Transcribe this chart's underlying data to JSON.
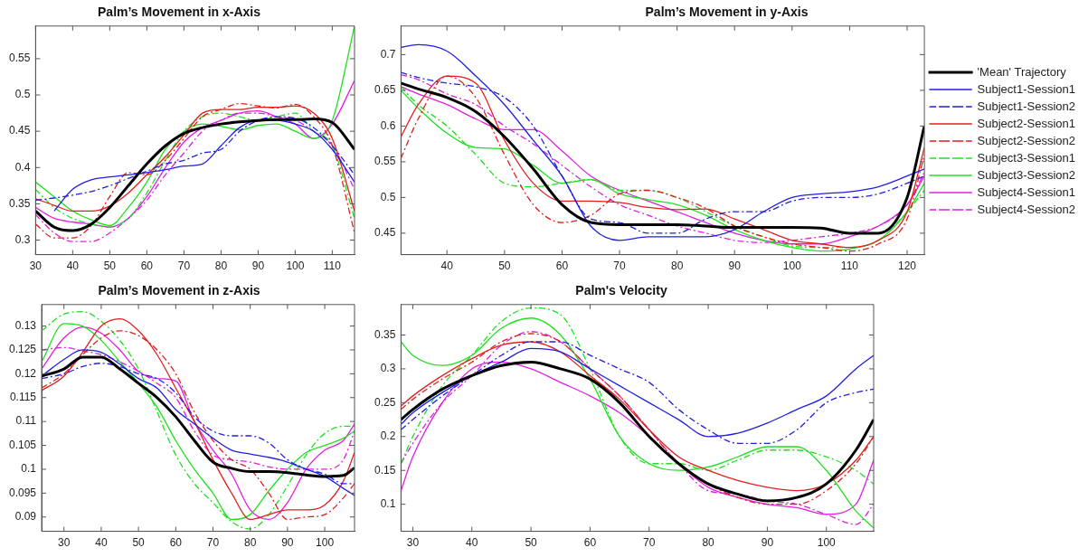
{
  "chart_data": [
    {
      "type": "line",
      "title": "Palm’s Movement in x-Axis",
      "x": [
        30,
        35,
        40,
        45,
        50,
        55,
        60,
        65,
        70,
        75,
        80,
        85,
        90,
        95,
        100,
        105,
        110,
        116
      ],
      "xlim": [
        30,
        116
      ],
      "xticks": [
        30,
        40,
        50,
        60,
        70,
        80,
        90,
        100,
        110
      ],
      "ylim": [
        0.28,
        0.595
      ],
      "yticks": [
        0.3,
        0.35,
        0.4,
        0.45,
        0.5,
        0.55
      ],
      "marker": "none",
      "legend": false,
      "series": [
        {
          "color": "#000000",
          "values": [
            0.34,
            0.318,
            0.313,
            0.322,
            0.345,
            0.375,
            0.405,
            0.43,
            0.447,
            0.455,
            0.46,
            0.463,
            0.465,
            0.466,
            0.466,
            0.467,
            0.462,
            0.425
          ]
        },
        {
          "color": "#2020e0",
          "values": [
            null,
            0.34,
            0.37,
            0.383,
            0.387,
            0.39,
            0.393,
            0.397,
            0.402,
            0.405,
            0.43,
            0.455,
            0.465,
            0.465,
            0.46,
            0.45,
            0.425,
            0.38
          ]
        },
        {
          "color": "#2020e0",
          "line_style": "dashed",
          "values": [
            0.355,
            0.358,
            0.362,
            0.367,
            0.375,
            0.385,
            0.395,
            0.405,
            0.41,
            0.42,
            0.425,
            0.45,
            0.465,
            0.47,
            0.468,
            0.455,
            0.43,
            0.39
          ]
        },
        {
          "color": "#e02020",
          "values": [
            0.357,
            0.348,
            0.34,
            0.34,
            0.347,
            0.365,
            0.39,
            0.415,
            0.445,
            0.475,
            0.48,
            0.48,
            0.483,
            0.483,
            0.485,
            0.475,
            0.44,
            0.34
          ]
        },
        {
          "color": "#e02020",
          "line_style": "dashed",
          "values": [
            0.322,
            0.303,
            0.303,
            0.32,
            0.36,
            0.393,
            0.39,
            0.41,
            0.44,
            0.47,
            0.48,
            0.488,
            0.485,
            0.482,
            0.487,
            0.47,
            0.43,
            0.31
          ]
        },
        {
          "color": "#20e020",
          "line_style": "dashed",
          "values": [
            0.37,
            0.345,
            0.33,
            0.322,
            0.318,
            0.33,
            0.365,
            0.41,
            0.45,
            0.47,
            0.475,
            0.47,
            0.465,
            0.47,
            0.475,
            0.45,
            0.43,
            0.33
          ]
        },
        {
          "color": "#20e020",
          "values": [
            0.38,
            0.36,
            0.34,
            0.328,
            0.32,
            0.345,
            0.38,
            0.425,
            0.45,
            0.46,
            0.457,
            0.452,
            0.458,
            0.46,
            0.45,
            0.44,
            0.465,
            0.595
          ]
        },
        {
          "color": "#e020e0",
          "values": [
            0.345,
            0.33,
            0.325,
            0.322,
            0.318,
            0.33,
            0.36,
            0.4,
            0.435,
            0.455,
            0.465,
            0.475,
            0.478,
            0.47,
            0.46,
            0.44,
            0.46,
            0.52
          ]
        },
        {
          "color": "#e020e0",
          "line_style": "dashed",
          "values": [
            0.335,
            0.31,
            0.298,
            0.298,
            0.31,
            0.33,
            0.355,
            0.39,
            0.42,
            0.45,
            0.465,
            0.475,
            0.475,
            0.47,
            0.465,
            0.45,
            0.43,
            0.37
          ]
        }
      ]
    },
    {
      "type": "line",
      "title": "Palm’s Movement in y-Axis",
      "x": [
        32,
        35,
        40,
        45,
        50,
        55,
        60,
        65,
        70,
        75,
        80,
        85,
        90,
        95,
        100,
        105,
        110,
        115,
        120,
        123
      ],
      "xlim": [
        32,
        123
      ],
      "xticks": [
        40,
        50,
        60,
        70,
        80,
        90,
        100,
        110,
        120
      ],
      "ylim": [
        0.42,
        0.74
      ],
      "yticks": [
        0.45,
        0.5,
        0.55,
        0.6,
        0.65,
        0.7
      ],
      "marker": "none",
      "legend": "right",
      "series": [
        {
          "name": "'Mean' Trajectory",
          "color": "#000000",
          "values": [
            0.66,
            0.652,
            0.64,
            0.62,
            0.585,
            0.54,
            0.49,
            0.465,
            0.462,
            0.462,
            0.462,
            0.46,
            0.458,
            0.458,
            0.458,
            0.457,
            0.45,
            0.45,
            0.5,
            0.6
          ]
        },
        {
          "name": "Subject1-Session1",
          "color": "#2020e0",
          "values": [
            0.71,
            0.714,
            0.705,
            0.67,
            0.63,
            0.58,
            0.53,
            0.46,
            0.44,
            0.445,
            0.445,
            0.445,
            0.455,
            0.48,
            0.5,
            0.505,
            0.508,
            0.515,
            0.53,
            0.54
          ]
        },
        {
          "name": "Subject1-Session2",
          "color": "#2020e0",
          "line_style": "dashed",
          "values": [
            0.675,
            0.668,
            0.66,
            0.655,
            0.64,
            0.6,
            0.53,
            0.47,
            0.465,
            0.45,
            0.45,
            0.47,
            0.48,
            0.48,
            0.495,
            0.5,
            0.5,
            0.505,
            0.52,
            0.53
          ]
        },
        {
          "name": "Subject2-Session1",
          "color": "#e02020",
          "values": [
            0.585,
            0.63,
            0.67,
            0.66,
            0.58,
            0.52,
            0.495,
            0.495,
            0.493,
            0.486,
            0.483,
            0.484,
            0.47,
            0.455,
            0.44,
            0.435,
            0.43,
            0.44,
            0.48,
            0.57
          ]
        },
        {
          "name": "Subject2-Session2",
          "color": "#e02020",
          "line_style": "dashed",
          "values": [
            0.555,
            0.61,
            0.67,
            0.64,
            0.56,
            0.49,
            0.465,
            0.475,
            0.505,
            0.51,
            0.5,
            0.485,
            0.46,
            0.445,
            0.435,
            0.43,
            0.425,
            0.435,
            0.47,
            0.56
          ]
        },
        {
          "name": "Subject3-Session1",
          "color": "#20e020",
          "line_style": "dashed",
          "values": [
            0.655,
            0.63,
            0.6,
            0.56,
            0.52,
            0.515,
            0.52,
            0.525,
            0.51,
            0.51,
            0.5,
            0.48,
            0.46,
            0.445,
            0.432,
            0.43,
            0.43,
            0.44,
            0.48,
            0.51
          ]
        },
        {
          "name": "Subject3-Session2",
          "color": "#20e020",
          "values": [
            0.65,
            0.625,
            0.59,
            0.57,
            0.568,
            0.545,
            0.52,
            0.525,
            0.505,
            0.497,
            0.49,
            0.475,
            0.455,
            0.44,
            0.43,
            0.425,
            0.428,
            0.44,
            0.48,
            0.52
          ]
        },
        {
          "name": "Subject4-Session1",
          "color": "#e020e0",
          "values": [
            0.655,
            0.645,
            0.63,
            0.61,
            0.595,
            0.595,
            0.565,
            0.53,
            0.51,
            0.495,
            0.48,
            0.465,
            0.45,
            0.44,
            0.435,
            0.435,
            0.445,
            0.46,
            0.49,
            0.53
          ]
        },
        {
          "name": "Subject4-Session2",
          "color": "#e020e0",
          "line_style": "dashed",
          "values": [
            0.672,
            0.665,
            0.645,
            0.63,
            0.6,
            0.575,
            0.545,
            0.515,
            0.49,
            0.475,
            0.46,
            0.45,
            0.44,
            0.437,
            0.44,
            0.445,
            0.45,
            0.46,
            0.49,
            0.535
          ]
        }
      ]
    },
    {
      "type": "line",
      "title": "Palm’s Movement in z-Axis",
      "x": [
        24,
        30,
        35,
        40,
        45,
        50,
        55,
        60,
        65,
        70,
        75,
        80,
        85,
        90,
        95,
        100,
        105,
        108
      ],
      "xlim": [
        24,
        108
      ],
      "xticks": [
        30,
        40,
        50,
        60,
        70,
        80,
        90,
        100
      ],
      "ylim": [
        0.087,
        0.1345
      ],
      "yticks": [
        0.09,
        0.095,
        0.1,
        0.105,
        0.11,
        0.115,
        0.12,
        0.125,
        0.13
      ],
      "marker": "none",
      "legend": false,
      "series": [
        {
          "color": "#000000",
          "values": [
            0.1195,
            0.121,
            0.1235,
            0.1235,
            0.121,
            0.118,
            0.115,
            0.111,
            0.106,
            0.1015,
            0.1002,
            0.0995,
            0.0995,
            0.0993,
            0.0988,
            0.0985,
            0.0987,
            0.1003
          ]
        },
        {
          "color": "#2020e0",
          "values": [
            0.1195,
            0.123,
            0.125,
            0.1245,
            0.122,
            0.119,
            0.117,
            0.1125,
            0.1095,
            0.1065,
            0.104,
            0.1032,
            0.1025,
            0.1015,
            0.1,
            0.0985,
            0.096,
            0.0945
          ]
        },
        {
          "color": "#2020e0",
          "line_style": "dashed",
          "values": [
            0.119,
            0.12,
            0.1215,
            0.1222,
            0.1215,
            0.12,
            0.119,
            0.116,
            0.111,
            0.108,
            0.107,
            0.107,
            0.1055,
            0.102,
            0.1,
            0.099,
            0.097,
            0.097
          ]
        },
        {
          "color": "#e02020",
          "values": [
            0.1165,
            0.1195,
            0.1245,
            0.13,
            0.1315,
            0.129,
            0.124,
            0.117,
            0.11,
            0.102,
            0.095,
            0.0895,
            0.0905,
            0.0915,
            0.0915,
            0.0925,
            0.0975,
            0.1035
          ]
        },
        {
          "color": "#e02020",
          "line_style": "dashed",
          "values": [
            0.117,
            0.12,
            0.124,
            0.1275,
            0.129,
            0.128,
            0.125,
            0.12,
            0.112,
            0.106,
            0.102,
            0.1,
            0.095,
            0.0895,
            0.09,
            0.0905,
            0.094,
            0.097
          ]
        },
        {
          "color": "#20e020",
          "line_style": "dashed",
          "values": [
            0.129,
            0.1325,
            0.133,
            0.131,
            0.127,
            0.121,
            0.112,
            0.103,
            0.097,
            0.093,
            0.089,
            0.0875,
            0.0905,
            0.0965,
            0.103,
            0.1075,
            0.109,
            0.109
          ]
        },
        {
          "color": "#20e020",
          "values": [
            0.1225,
            0.1305,
            0.13,
            0.127,
            0.1225,
            0.118,
            0.113,
            0.106,
            0.1,
            0.095,
            0.0895,
            0.0905,
            0.0955,
            0.1,
            0.1035,
            0.105,
            0.1065,
            0.108
          ]
        },
        {
          "color": "#e020e0",
          "values": [
            0.121,
            0.1275,
            0.1298,
            0.1285,
            0.125,
            0.1205,
            0.119,
            0.1185,
            0.11,
            0.104,
            0.099,
            0.0915,
            0.0895,
            0.093,
            0.1,
            0.104,
            0.106,
            0.1095
          ]
        },
        {
          "color": "#e020e0",
          "line_style": "dashed",
          "values": [
            0.125,
            0.1255,
            0.1248,
            0.124,
            0.1225,
            0.1205,
            0.118,
            0.115,
            0.108,
            0.103,
            0.102,
            0.1015,
            0.1005,
            0.1,
            0.1,
            0.1,
            0.102,
            0.108
          ]
        }
      ]
    },
    {
      "type": "line",
      "title": "Palm's Velocity",
      "x": [
        28,
        30,
        35,
        40,
        45,
        50,
        55,
        60,
        65,
        70,
        75,
        80,
        85,
        90,
        95,
        100,
        105,
        108
      ],
      "xlim": [
        28,
        108
      ],
      "xticks": [
        30,
        40,
        50,
        60,
        70,
        80,
        90,
        100
      ],
      "ylim": [
        0.06,
        0.395
      ],
      "yticks": [
        0.1,
        0.15,
        0.2,
        0.25,
        0.3,
        0.35
      ],
      "marker": "none",
      "legend": false,
      "series": [
        {
          "color": "#000000",
          "values": [
            0.225,
            0.24,
            0.27,
            0.29,
            0.305,
            0.31,
            0.3,
            0.285,
            0.25,
            0.2,
            0.16,
            0.13,
            0.115,
            0.105,
            0.11,
            0.13,
            0.18,
            0.225
          ]
        },
        {
          "color": "#2020e0",
          "values": [
            0.218,
            0.235,
            0.265,
            0.29,
            0.31,
            0.33,
            0.325,
            0.3,
            0.275,
            0.25,
            0.225,
            0.2,
            0.205,
            0.22,
            0.24,
            0.26,
            0.3,
            0.32
          ]
        },
        {
          "color": "#2020e0",
          "line_style": "dashed",
          "values": [
            0.21,
            0.225,
            0.26,
            0.29,
            0.32,
            0.34,
            0.34,
            0.32,
            0.3,
            0.28,
            0.24,
            0.21,
            0.19,
            0.19,
            0.21,
            0.25,
            0.265,
            0.27
          ]
        },
        {
          "color": "#e02020",
          "values": [
            0.245,
            0.26,
            0.29,
            0.315,
            0.335,
            0.34,
            0.325,
            0.29,
            0.255,
            0.21,
            0.17,
            0.15,
            0.135,
            0.125,
            0.12,
            0.13,
            0.165,
            0.2
          ]
        },
        {
          "color": "#e02020",
          "line_style": "dashed",
          "values": [
            0.24,
            0.255,
            0.285,
            0.31,
            0.34,
            0.352,
            0.34,
            0.3,
            0.26,
            0.21,
            0.16,
            0.13,
            0.11,
            0.1,
            0.1,
            0.12,
            0.16,
            0.2
          ]
        },
        {
          "color": "#20e020",
          "line_style": "dashed",
          "values": [
            0.16,
            0.2,
            0.275,
            0.32,
            0.37,
            0.39,
            0.38,
            0.3,
            0.2,
            0.16,
            0.16,
            0.15,
            0.165,
            0.18,
            0.18,
            0.17,
            0.15,
            0.13
          ]
        },
        {
          "color": "#20e020",
          "values": [
            0.34,
            0.32,
            0.305,
            0.32,
            0.36,
            0.375,
            0.35,
            0.285,
            0.2,
            0.16,
            0.15,
            0.155,
            0.17,
            0.185,
            0.185,
            0.15,
            0.09,
            0.065
          ]
        },
        {
          "color": "#e020e0",
          "values": [
            0.12,
            0.17,
            0.25,
            0.3,
            0.31,
            0.3,
            0.28,
            0.26,
            0.235,
            0.2,
            0.16,
            0.125,
            0.11,
            0.1,
            0.095,
            0.085,
            0.1,
            0.165
          ]
        },
        {
          "color": "#e020e0",
          "line_style": "dashed",
          "values": [
            0.16,
            0.19,
            0.25,
            0.29,
            0.335,
            0.355,
            0.34,
            0.3,
            0.26,
            0.21,
            0.16,
            0.12,
            0.115,
            0.105,
            0.1,
            0.085,
            0.07,
            0.1
          ]
        }
      ]
    }
  ]
}
